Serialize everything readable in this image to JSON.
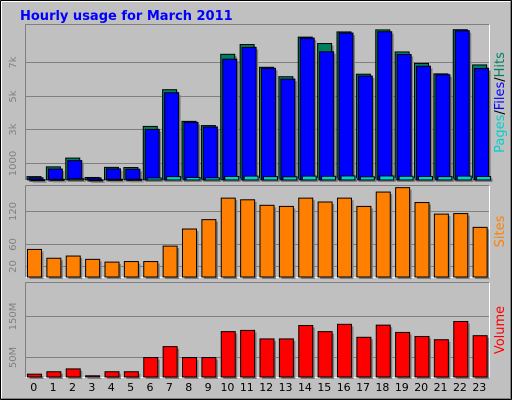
{
  "title": "Hourly usage for March 2011",
  "chart_data": [
    {
      "type": "bar",
      "panel": "top",
      "categories": [
        "0",
        "1",
        "2",
        "3",
        "4",
        "5",
        "6",
        "7",
        "8",
        "9",
        "10",
        "11",
        "12",
        "13",
        "14",
        "15",
        "16",
        "17",
        "18",
        "19",
        "20",
        "21",
        "22",
        "23"
      ],
      "ylabel_parts": [
        "Pages",
        "/",
        "Files",
        "/",
        "Hits"
      ],
      "ylabel_colors": [
        "#00d0d0",
        "#000000",
        "#0000ff",
        "#000000",
        "#008060"
      ],
      "yticks": [
        {
          "label": "1000",
          "value": 1000
        },
        {
          "label": "3k",
          "value": 3000
        },
        {
          "label": "5k",
          "value": 5000
        },
        {
          "label": "7k",
          "value": 7000
        }
      ],
      "ylim": [
        0,
        9200
      ],
      "series": [
        {
          "color": "#008060",
          "values": [
            200,
            780,
            1300,
            150,
            750,
            740,
            3180,
            5360,
            3480,
            3230,
            7460,
            8040,
            6690,
            6130,
            8480,
            8100,
            8790,
            6280,
            8910,
            7600,
            6920,
            6300,
            8920,
            6830
          ]
        },
        {
          "color": "#0000ff",
          "values": [
            130,
            650,
            1150,
            120,
            660,
            640,
            3000,
            5180,
            3420,
            3150,
            7170,
            7870,
            6630,
            5990,
            8420,
            7610,
            8720,
            6170,
            8800,
            7450,
            6750,
            6250,
            8860,
            6620
          ]
        },
        {
          "color": "#00d0d0",
          "values": [
            20,
            40,
            70,
            10,
            40,
            40,
            120,
            200,
            150,
            130,
            210,
            230,
            200,
            190,
            230,
            220,
            240,
            190,
            240,
            220,
            210,
            200,
            230,
            210
          ]
        }
      ]
    },
    {
      "type": "bar",
      "panel": "middle",
      "categories": [
        "0",
        "1",
        "2",
        "3",
        "4",
        "5",
        "6",
        "7",
        "8",
        "9",
        "10",
        "11",
        "12",
        "13",
        "14",
        "15",
        "16",
        "17",
        "18",
        "19",
        "20",
        "21",
        "22",
        "23"
      ],
      "ylabel": "Sites",
      "ylabel_color": "#ff8000",
      "yticks": [
        {
          "label": "20",
          "value": 20
        },
        {
          "label": "60",
          "value": 60
        },
        {
          "label": "120",
          "value": 120
        }
      ],
      "ylim": [
        0,
        165
      ],
      "series": [
        {
          "color": "#ff8000",
          "values": [
            50,
            34,
            38,
            32,
            27,
            28,
            28,
            56,
            87,
            104,
            143,
            140,
            130,
            128,
            143,
            136,
            143,
            128,
            154,
            162,
            135,
            114,
            115,
            90
          ]
        }
      ]
    },
    {
      "type": "bar",
      "panel": "bottom",
      "categories": [
        "0",
        "1",
        "2",
        "3",
        "4",
        "5",
        "6",
        "7",
        "8",
        "9",
        "10",
        "11",
        "12",
        "13",
        "14",
        "15",
        "16",
        "17",
        "18",
        "19",
        "20",
        "21",
        "22",
        "23"
      ],
      "ylabel": "Volume",
      "ylabel_color": "#ff0000",
      "yticks": [
        {
          "label": "50M",
          "value": 50
        },
        {
          "label": "150M",
          "value": 150
        }
      ],
      "ylim": [
        0,
        232
      ],
      "series": [
        {
          "color": "#ff0000",
          "values": [
            7,
            13,
            20,
            3,
            13,
            13,
            48,
            75,
            48,
            48,
            112,
            115,
            94,
            94,
            127,
            112,
            130,
            98,
            128,
            110,
            100,
            92,
            137,
            102
          ]
        }
      ]
    }
  ]
}
